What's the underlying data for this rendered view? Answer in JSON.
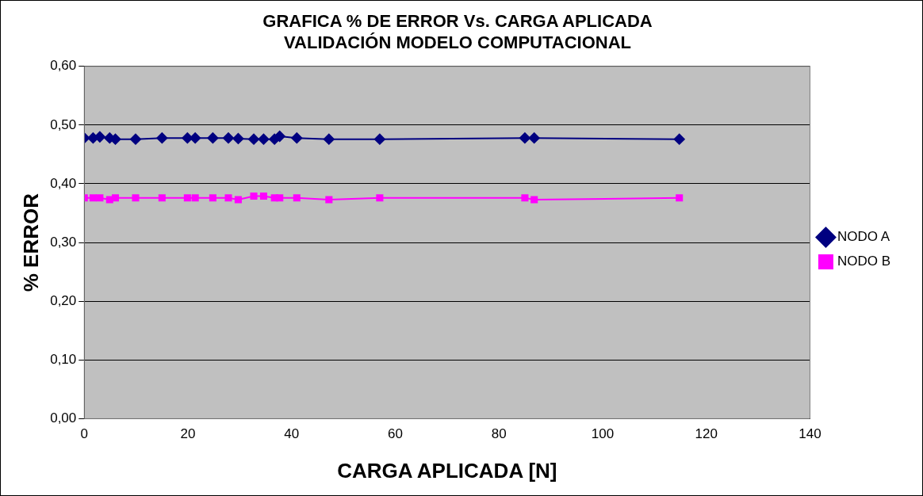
{
  "chart_data": {
    "type": "line",
    "title": [
      "GRAFICA % DE ERROR Vs. CARGA APLICADA",
      "VALIDACIÓN MODELO COMPUTACIONAL"
    ],
    "xlabel": "CARGA APLICADA [N]",
    "ylabel": "% ERROR",
    "x": [
      0,
      1.7,
      3,
      4.9,
      6,
      9.9,
      15,
      19.9,
      21.4,
      24.8,
      27.8,
      29.7,
      32.7,
      34.6,
      36.7,
      37.7,
      41,
      47.2,
      57,
      85,
      86.8,
      114.8
    ],
    "series": [
      {
        "name": "NODO A",
        "color": "#000080",
        "marker": "diamond",
        "values": [
          0.478,
          0.478,
          0.48,
          0.478,
          0.476,
          0.476,
          0.478,
          0.478,
          0.478,
          0.478,
          0.478,
          0.477,
          0.476,
          0.476,
          0.476,
          0.481,
          0.478,
          0.476,
          0.476,
          0.478,
          0.478,
          0.476
        ]
      },
      {
        "name": "NODO B",
        "color": "#ff00ff",
        "marker": "square",
        "values": [
          0.376,
          0.376,
          0.376,
          0.373,
          0.376,
          0.376,
          0.376,
          0.376,
          0.376,
          0.376,
          0.376,
          0.373,
          0.379,
          0.379,
          0.376,
          0.376,
          0.376,
          0.373,
          0.376,
          0.376,
          0.373,
          0.376
        ]
      }
    ],
    "xlim": [
      0,
      140
    ],
    "xticks": [
      0,
      20,
      40,
      60,
      80,
      100,
      120,
      140
    ],
    "ylim": [
      0,
      0.6
    ],
    "yticks": [
      {
        "value": 0,
        "label": "0,00"
      },
      {
        "value": 0.1,
        "label": "0,10"
      },
      {
        "value": 0.2,
        "label": "0,20"
      },
      {
        "value": 0.3,
        "label": "0,30"
      },
      {
        "value": 0.4,
        "label": "0,40"
      },
      {
        "value": 0.5,
        "label": "0,50"
      },
      {
        "value": 0.6,
        "label": "0,60"
      }
    ],
    "grid": "y",
    "legend": "right",
    "line_style": "solid"
  }
}
